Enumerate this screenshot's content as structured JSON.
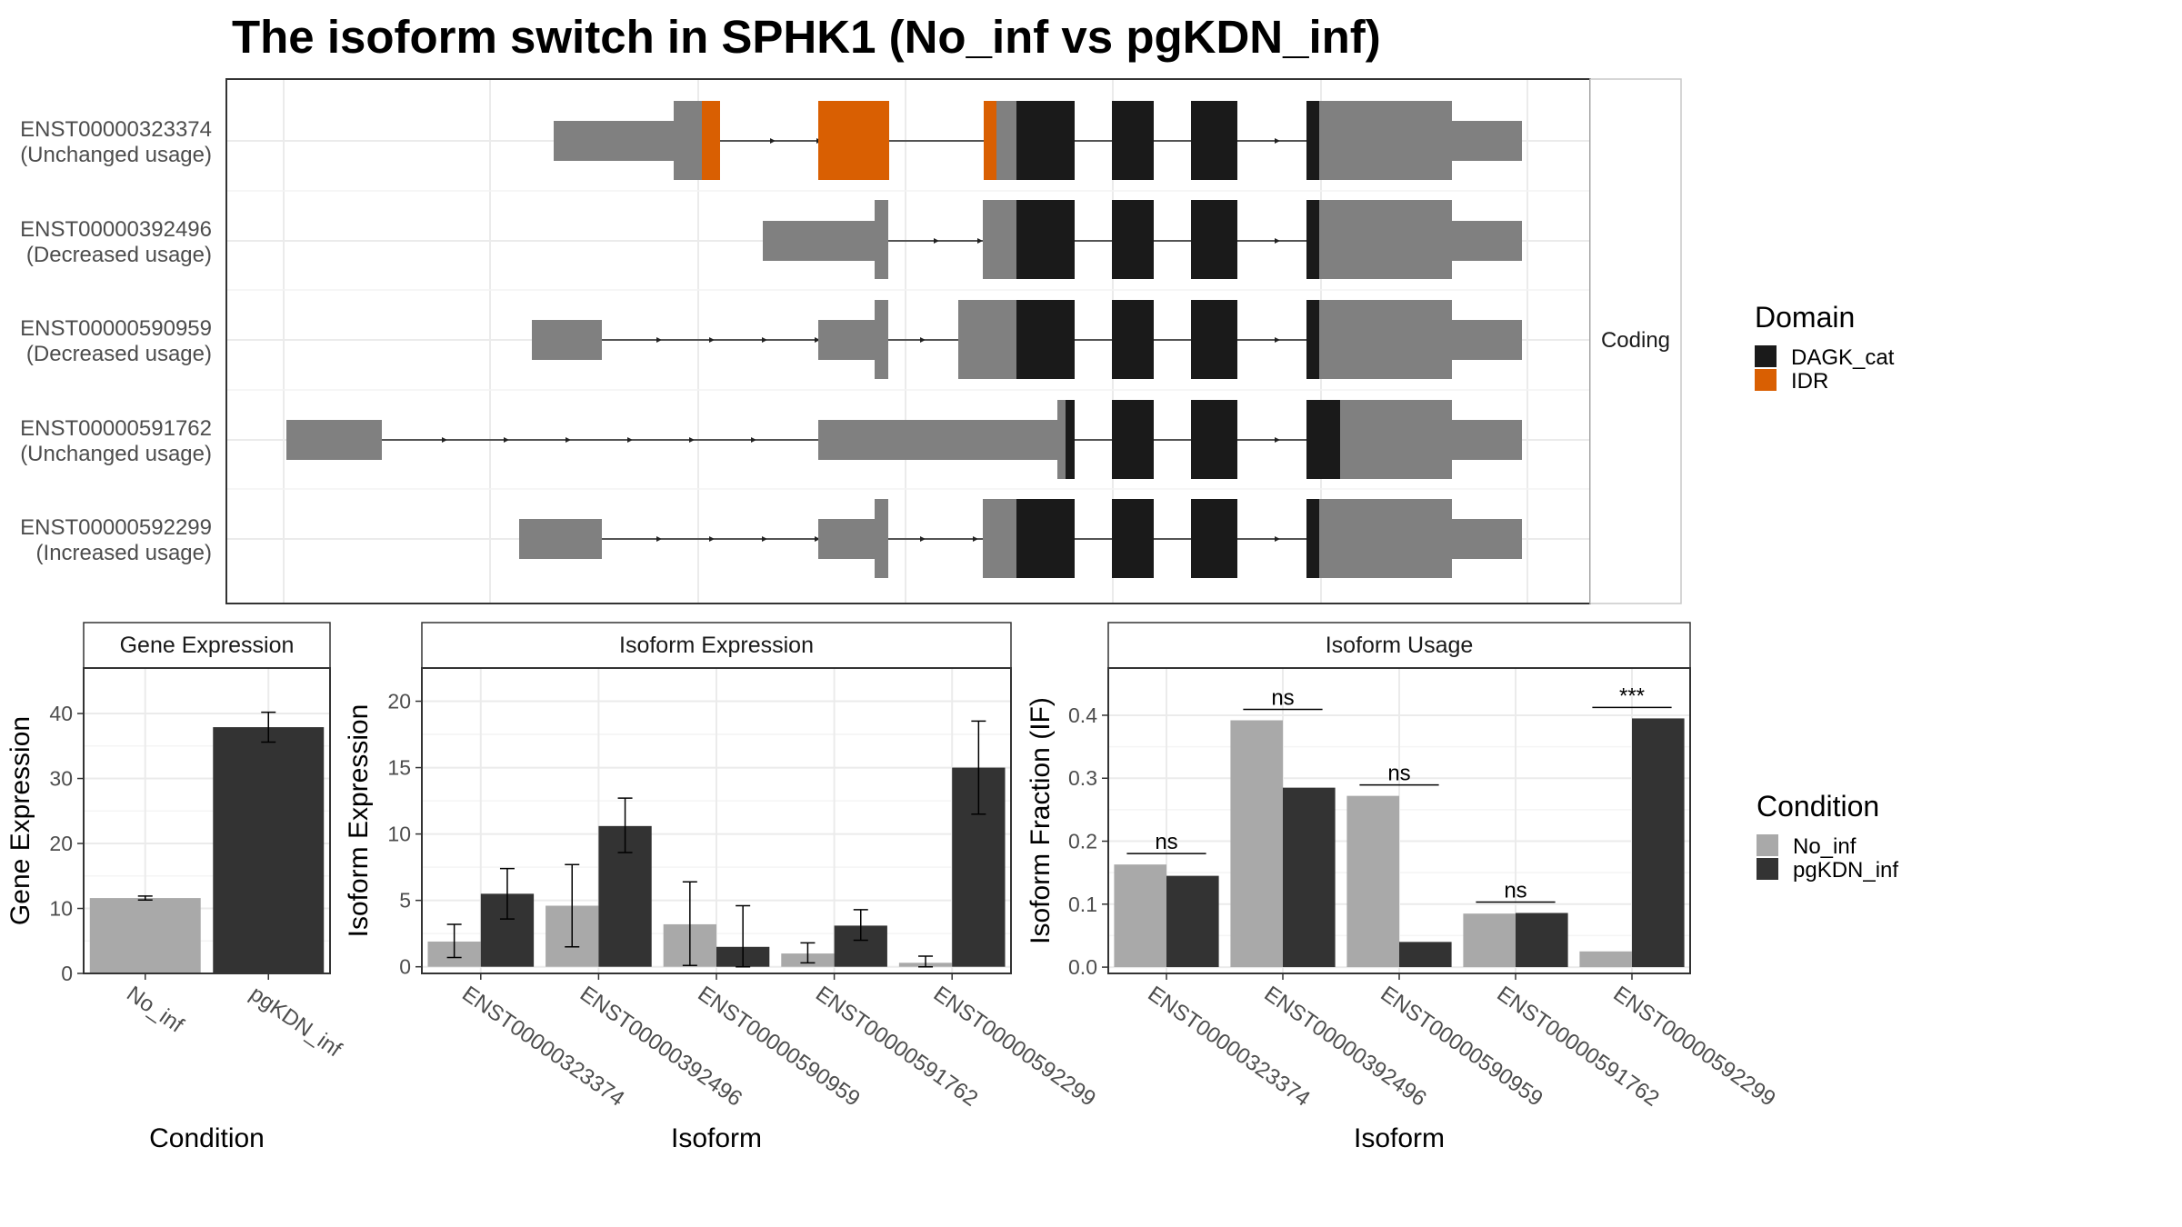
{
  "title": "The isoform switch in SPHK1 (No_inf vs pgKDN_inf)",
  "structure_panel": {
    "facet_label": "Coding",
    "isoforms": [
      {
        "id": "ENST00000323374",
        "status": "(Unchanged usage)"
      },
      {
        "id": "ENST00000392496",
        "status": "(Decreased usage)"
      },
      {
        "id": "ENST00000590959",
        "status": "(Decreased usage)"
      },
      {
        "id": "ENST00000591762",
        "status": "(Unchanged usage)"
      },
      {
        "id": "ENST00000592299",
        "status": "(Increased usage)"
      }
    ]
  },
  "domain_legend": {
    "title": "Domain",
    "items": [
      {
        "label": "DAGK_cat",
        "color": "#1a1a1a"
      },
      {
        "label": "IDR",
        "color": "#d95f02"
      }
    ]
  },
  "condition_legend": {
    "title": "Condition",
    "items": [
      {
        "label": "No_inf",
        "color": "#a9a9a9"
      },
      {
        "label": "pgKDN_inf",
        "color": "#333333"
      }
    ]
  },
  "chart_data": [
    {
      "type": "bar",
      "panel": "Gene Expression",
      "categories": [
        "No_inf",
        "pgKDN_inf"
      ],
      "values": [
        11.6,
        37.9
      ],
      "error_low": [
        11.3,
        35.6
      ],
      "error_high": [
        11.9,
        40.2
      ],
      "colors": [
        "#a9a9a9",
        "#333333"
      ],
      "xlabel": "Condition",
      "ylabel": "Gene Expression",
      "ylim": [
        0,
        47
      ],
      "yticks": [
        0,
        10,
        20,
        30,
        40
      ],
      "grid": true
    },
    {
      "type": "bar",
      "panel": "Isoform Expression",
      "categories": [
        "ENST00000323374",
        "ENST00000392496",
        "ENST00000590959",
        "ENST00000591762",
        "ENST00000592299"
      ],
      "series": [
        {
          "name": "No_inf",
          "values": [
            1.9,
            4.6,
            3.2,
            1.0,
            0.3
          ],
          "error_low": [
            0.7,
            1.5,
            0.1,
            0.3,
            0.0
          ],
          "error_high": [
            3.2,
            7.7,
            6.4,
            1.8,
            0.8
          ]
        },
        {
          "name": "pgKDN_inf",
          "values": [
            5.5,
            10.6,
            1.5,
            3.1,
            15.0
          ],
          "error_low": [
            3.6,
            8.6,
            0.0,
            2.0,
            11.5
          ],
          "error_high": [
            7.4,
            12.7,
            4.6,
            4.3,
            18.5
          ]
        }
      ],
      "xlabel": "Isoform",
      "ylabel": "Isoform Expression",
      "ylim": [
        -0.5,
        22.5
      ],
      "yticks": [
        0,
        5,
        10,
        15,
        20
      ],
      "grid": true
    },
    {
      "type": "bar",
      "panel": "Isoform Usage",
      "categories": [
        "ENST00000323374",
        "ENST00000392496",
        "ENST00000590959",
        "ENST00000591762",
        "ENST00000592299"
      ],
      "series": [
        {
          "name": "No_inf",
          "values": [
            0.163,
            0.392,
            0.272,
            0.085,
            0.025
          ]
        },
        {
          "name": "pgKDN_inf",
          "values": [
            0.145,
            0.285,
            0.04,
            0.086,
            0.395
          ]
        }
      ],
      "significance": [
        "ns",
        "ns",
        "ns",
        "ns",
        "***"
      ],
      "xlabel": "Isoform",
      "ylabel": "Isoform Fraction (IF)",
      "ylim": [
        -0.01,
        0.475
      ],
      "yticks": [
        0.0,
        0.1,
        0.2,
        0.3,
        0.4
      ],
      "yticklabels": [
        "0.0",
        "0.1",
        "0.2",
        "0.3",
        "0.4"
      ],
      "grid": true
    }
  ]
}
